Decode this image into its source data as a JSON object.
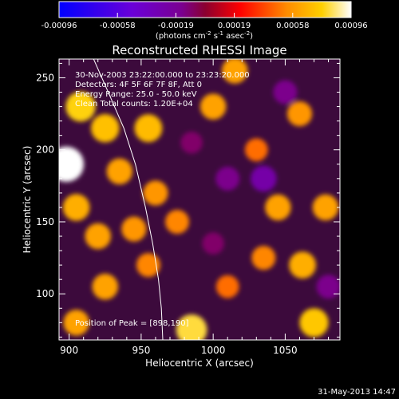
{
  "chart_data": {
    "type": "heatmap",
    "title": "Reconstructed RHESSI Image",
    "xlabel": "Heliocentric X (arcsec)",
    "ylabel": "Heliocentric Y (arcsec)",
    "xlim": [
      893,
      1088
    ],
    "ylim": [
      68,
      263
    ],
    "x_ticks": [
      "900",
      "950",
      "1000",
      "1050"
    ],
    "y_ticks": [
      "100",
      "150",
      "200",
      "250"
    ],
    "colorbar": {
      "label_main": "(photons cm",
      "sup1": "-2",
      "mid1": " s",
      "sup2": "-1",
      "mid2": " asec",
      "sup3": "-2",
      "end": ")",
      "ticks": [
        "-0.00096",
        "-0.00058",
        "-0.00019",
        "0.00019",
        "0.00058",
        "0.00096"
      ],
      "range": [
        -0.00096,
        0.00096
      ],
      "colormap": [
        "#0000ff",
        "#6a00d8",
        "#7a0090",
        "#8a0030",
        "#ff0000",
        "#ff8c00",
        "#ffd000",
        "#ffffff"
      ]
    },
    "annotations": [
      "30-Nov-2003 23:22:00.000 to 23:23:20.000",
      "Detectors: 4F 5F 6F 7F 8F, Att 0",
      "Energy Range: 25.0 - 50.0 keV",
      "Clean    Total counts: 1.20E+04",
      "Position of Peak = [898,190]"
    ],
    "peak": [
      898,
      190
    ],
    "blobs": [
      {
        "x": 898,
        "y": 190,
        "v": 0.00096
      },
      {
        "x": 908,
        "y": 230,
        "v": 0.0007
      },
      {
        "x": 925,
        "y": 215,
        "v": 0.00062
      },
      {
        "x": 935,
        "y": 185,
        "v": 0.0005
      },
      {
        "x": 955,
        "y": 215,
        "v": 0.0006
      },
      {
        "x": 960,
        "y": 170,
        "v": 0.00045
      },
      {
        "x": 905,
        "y": 160,
        "v": 0.00055
      },
      {
        "x": 920,
        "y": 140,
        "v": 0.0005
      },
      {
        "x": 945,
        "y": 145,
        "v": 0.00045
      },
      {
        "x": 925,
        "y": 105,
        "v": 0.0005
      },
      {
        "x": 955,
        "y": 120,
        "v": 0.0004
      },
      {
        "x": 905,
        "y": 80,
        "v": 0.0005
      },
      {
        "x": 985,
        "y": 75,
        "v": 0.00075
      },
      {
        "x": 975,
        "y": 150,
        "v": 0.0004
      },
      {
        "x": 1000,
        "y": 230,
        "v": 0.0005
      },
      {
        "x": 1015,
        "y": 255,
        "v": 0.0005
      },
      {
        "x": 1030,
        "y": 200,
        "v": 0.00035
      },
      {
        "x": 1045,
        "y": 160,
        "v": 0.0005
      },
      {
        "x": 1078,
        "y": 160,
        "v": 0.0005
      },
      {
        "x": 1062,
        "y": 120,
        "v": 0.00055
      },
      {
        "x": 1070,
        "y": 80,
        "v": 0.00065
      },
      {
        "x": 1010,
        "y": 105,
        "v": 0.00035
      },
      {
        "x": 1035,
        "y": 125,
        "v": 0.0004
      },
      {
        "x": 1060,
        "y": 225,
        "v": 0.00045
      },
      {
        "x": 1010,
        "y": 180,
        "v": -0.0004
      },
      {
        "x": 1035,
        "y": 180,
        "v": -0.0005
      },
      {
        "x": 1050,
        "y": 240,
        "v": -0.0004
      },
      {
        "x": 1000,
        "y": 135,
        "v": -0.0003
      },
      {
        "x": 1080,
        "y": 105,
        "v": -0.0004
      },
      {
        "x": 985,
        "y": 205,
        "v": -0.0003
      }
    ],
    "limb": [
      [
        965,
        68
      ],
      [
        964,
        90
      ],
      [
        962,
        110
      ],
      [
        958,
        135
      ],
      [
        953,
        160
      ],
      [
        946,
        190
      ],
      [
        938,
        215
      ],
      [
        928,
        238
      ],
      [
        917,
        263
      ]
    ]
  },
  "footer": {
    "date": "31-May-2013 14:47"
  }
}
